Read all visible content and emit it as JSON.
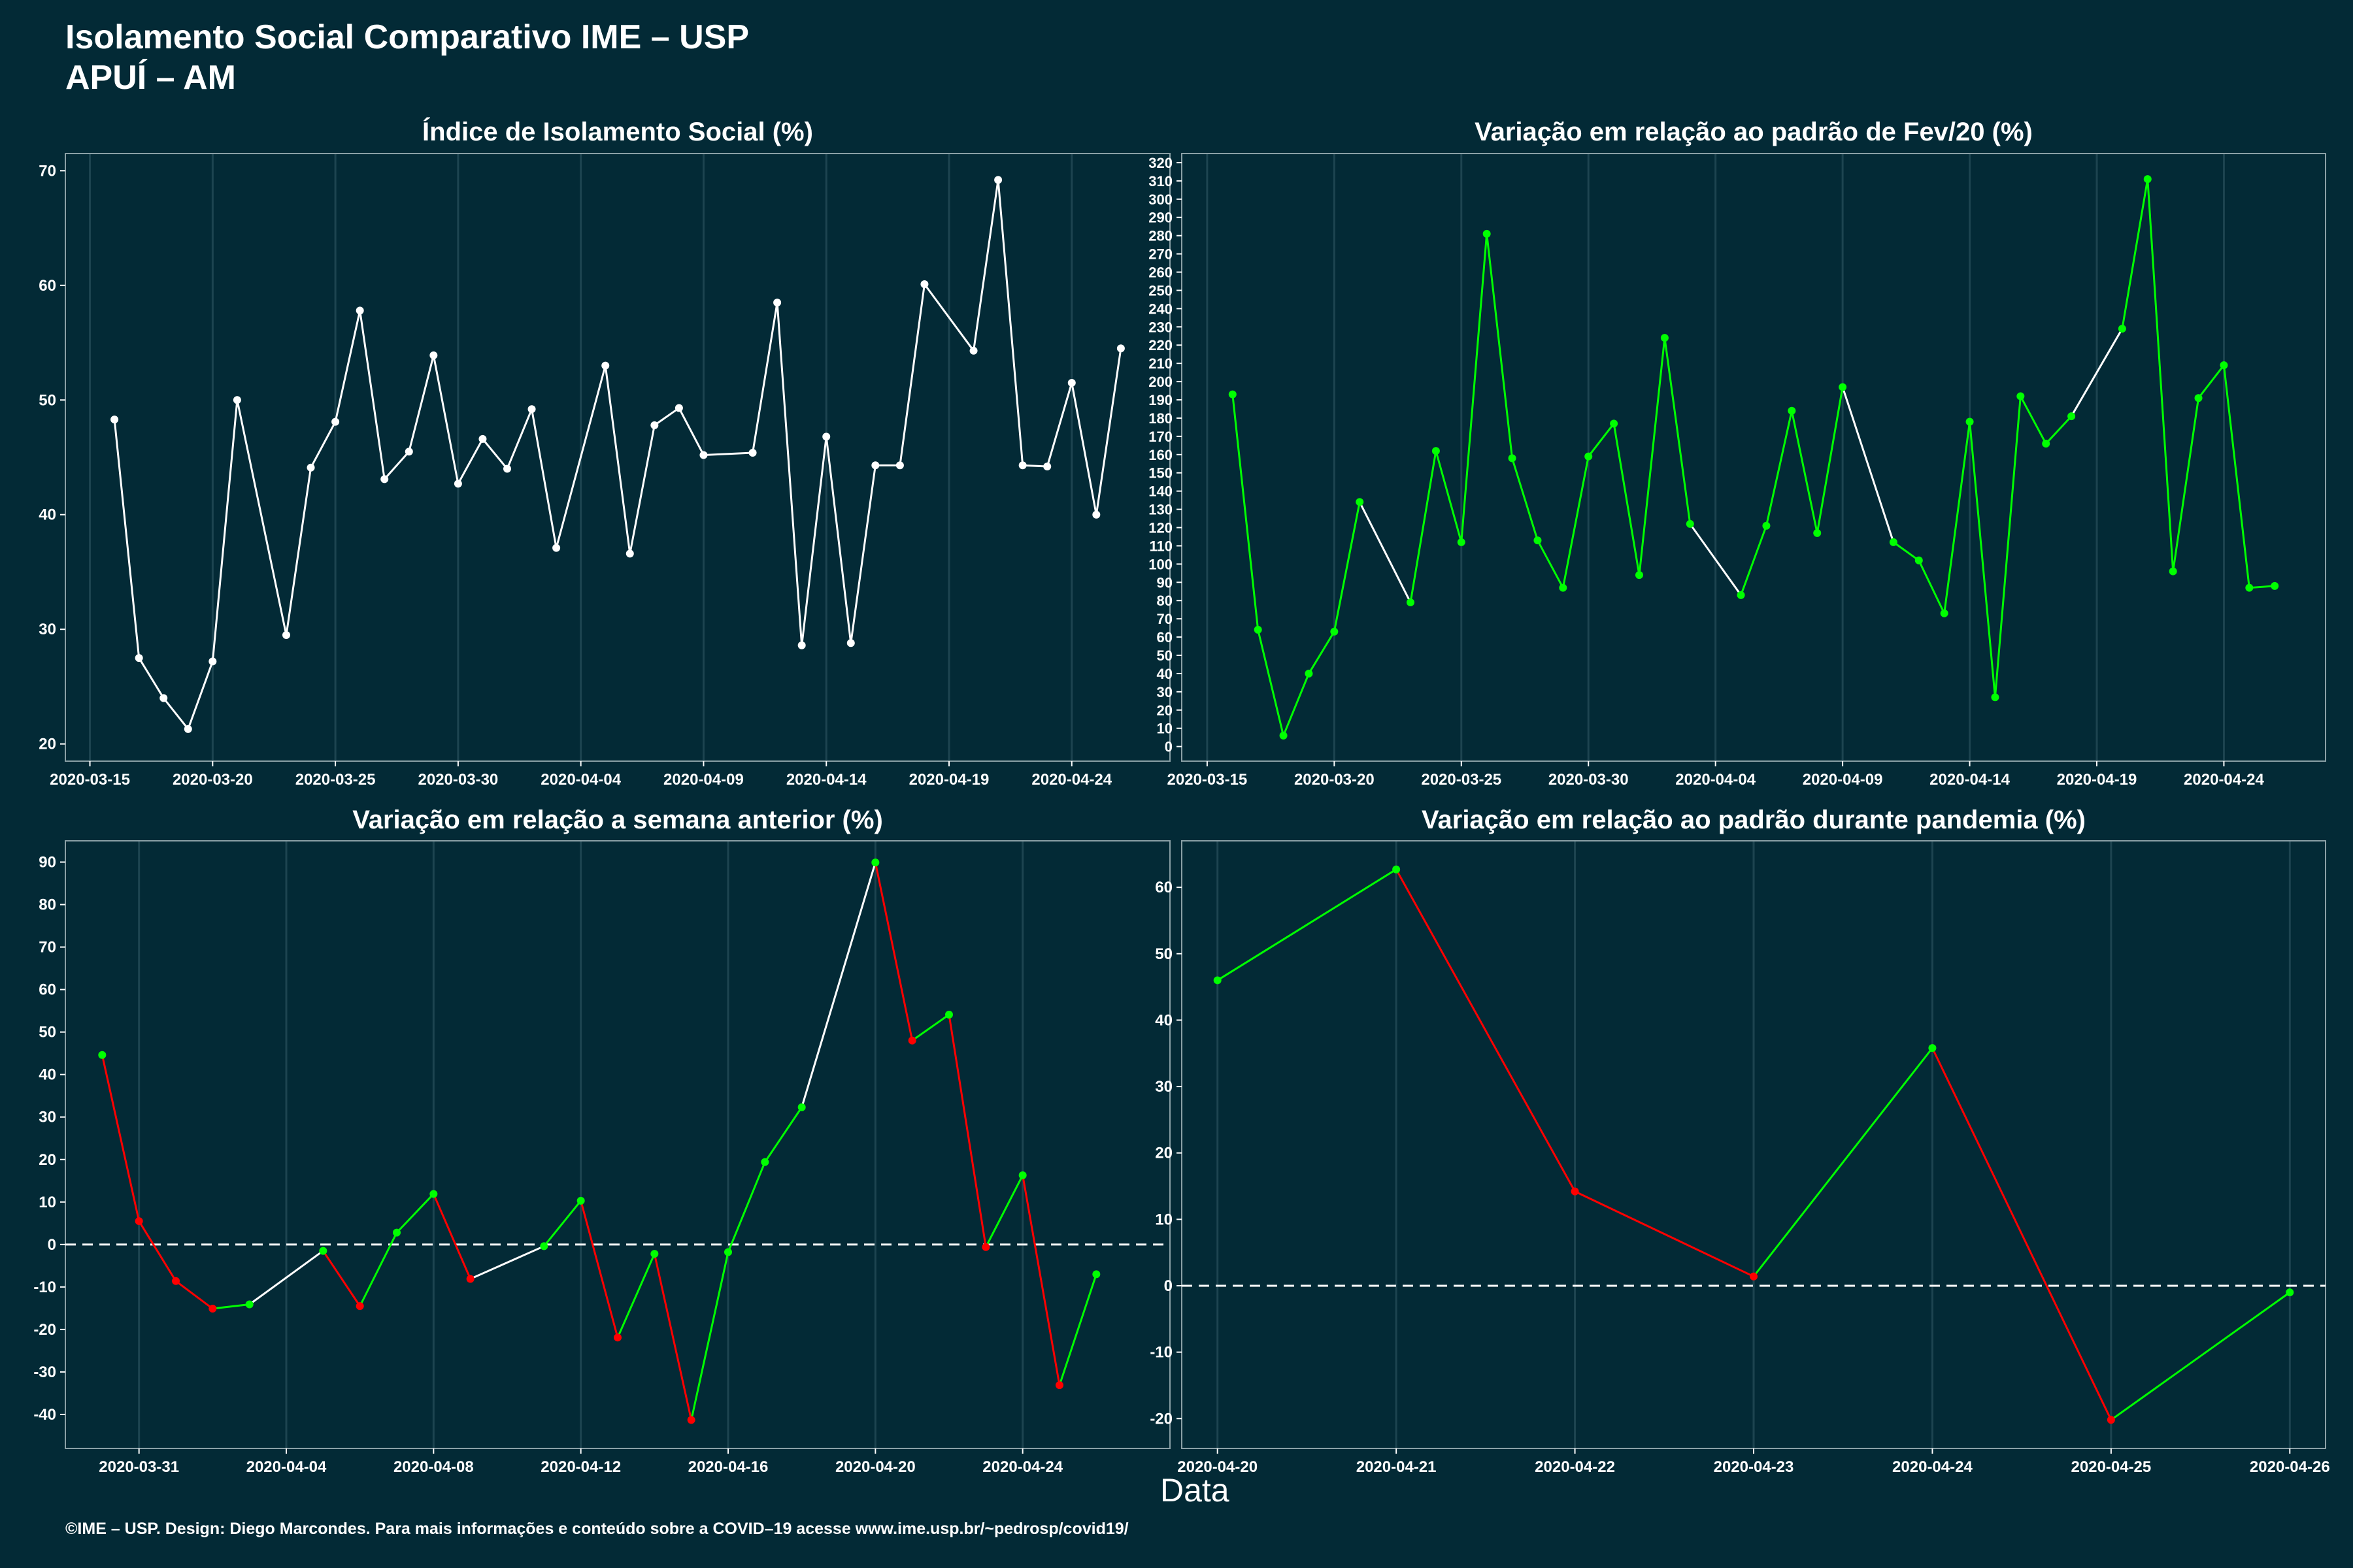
{
  "header": {
    "title_line1": "Isolamento Social Comparativo IME – USP",
    "title_line2": "APUÍ – AM"
  },
  "footer": {
    "text": "©IME – USP. Design: Diego Marcondes. Para mais informações e conteúdo sobre a COVID–19 acesse www.ime.usp.br/~pedrosp/covid19/"
  },
  "xaxis_title": "Data",
  "colors": {
    "background": "#032a36",
    "grid": "#1d4450",
    "up": "#00ff00",
    "down": "#ff0000",
    "neutral": "#ffffff"
  },
  "chart_data": [
    {
      "type": "line",
      "title": "Índice de Isolamento Social (%)",
      "xlabel": "",
      "ylabel": "",
      "ylim": [
        18.5,
        71.5
      ],
      "yticks": [
        20,
        30,
        40,
        50,
        60,
        70
      ],
      "xlim": [
        "2020-03-14",
        "2020-04-28"
      ],
      "xticks": [
        "2020-03-15",
        "2020-03-20",
        "2020-03-25",
        "2020-03-30",
        "2020-04-04",
        "2020-04-09",
        "2020-04-14",
        "2020-04-19",
        "2020-04-24"
      ],
      "color_mode": "single",
      "grid": true,
      "points": [
        [
          "2020-03-16",
          48.3
        ],
        [
          "2020-03-17",
          27.5
        ],
        [
          "2020-03-18",
          24.0
        ],
        [
          "2020-03-19",
          21.3
        ],
        [
          "2020-03-20",
          27.2
        ],
        [
          "2020-03-21",
          50.0
        ],
        [
          "2020-03-23",
          29.5
        ],
        [
          "2020-03-24",
          44.1
        ],
        [
          "2020-03-25",
          48.1
        ],
        [
          "2020-03-26",
          57.8
        ],
        [
          "2020-03-27",
          43.1
        ],
        [
          "2020-03-28",
          45.5
        ],
        [
          "2020-03-29",
          53.9
        ],
        [
          "2020-03-30",
          42.7
        ],
        [
          "2020-03-31",
          46.6
        ],
        [
          "2020-04-01",
          44.0
        ],
        [
          "2020-04-02",
          49.2
        ],
        [
          "2020-04-03",
          37.1
        ],
        [
          "2020-04-05",
          53.0
        ],
        [
          "2020-04-06",
          36.6
        ],
        [
          "2020-04-07",
          47.8
        ],
        [
          "2020-04-08",
          49.3
        ],
        [
          "2020-04-09",
          45.2
        ],
        [
          "2020-04-11",
          45.4
        ],
        [
          "2020-04-12",
          58.5
        ],
        [
          "2020-04-13",
          28.6
        ],
        [
          "2020-04-14",
          46.8
        ],
        [
          "2020-04-15",
          28.8
        ],
        [
          "2020-04-16",
          44.3
        ],
        [
          "2020-04-17",
          44.3
        ],
        [
          "2020-04-18",
          60.1
        ],
        [
          "2020-04-20",
          54.3
        ],
        [
          "2020-04-21",
          69.2
        ],
        [
          "2020-04-22",
          44.3
        ],
        [
          "2020-04-23",
          44.2
        ],
        [
          "2020-04-24",
          51.5
        ],
        [
          "2020-04-25",
          40.0
        ],
        [
          "2020-04-26",
          54.5
        ]
      ]
    },
    {
      "type": "line",
      "title": "Variação em relação ao padrão de Fev/20 (%)",
      "xlabel": "",
      "ylabel": "",
      "ylim": [
        -8,
        325
      ],
      "yticks": [
        0,
        10,
        20,
        30,
        40,
        50,
        60,
        70,
        80,
        90,
        100,
        110,
        120,
        130,
        140,
        150,
        160,
        170,
        180,
        190,
        200,
        210,
        220,
        230,
        240,
        250,
        260,
        270,
        280,
        290,
        300,
        310,
        320
      ],
      "xlim": [
        "2020-03-14",
        "2020-04-28"
      ],
      "xticks": [
        "2020-03-15",
        "2020-03-20",
        "2020-03-25",
        "2020-03-30",
        "2020-04-04",
        "2020-04-09",
        "2020-04-14",
        "2020-04-19",
        "2020-04-24"
      ],
      "color_mode": "gap",
      "grid": true,
      "points": [
        [
          "2020-03-16",
          193
        ],
        [
          "2020-03-17",
          64
        ],
        [
          "2020-03-18",
          6
        ],
        [
          "2020-03-19",
          40
        ],
        [
          "2020-03-20",
          63
        ],
        [
          "2020-03-21",
          134
        ],
        [
          "2020-03-23",
          79
        ],
        [
          "2020-03-24",
          162
        ],
        [
          "2020-03-25",
          112
        ],
        [
          "2020-03-26",
          281
        ],
        [
          "2020-03-27",
          158
        ],
        [
          "2020-03-28",
          113
        ],
        [
          "2020-03-29",
          87
        ],
        [
          "2020-03-30",
          159
        ],
        [
          "2020-03-31",
          177
        ],
        [
          "2020-04-01",
          94
        ],
        [
          "2020-04-02",
          224
        ],
        [
          "2020-04-03",
          122
        ],
        [
          "2020-04-05",
          83
        ],
        [
          "2020-04-06",
          121
        ],
        [
          "2020-04-07",
          184
        ],
        [
          "2020-04-08",
          117
        ],
        [
          "2020-04-09",
          197
        ],
        [
          "2020-04-11",
          112
        ],
        [
          "2020-04-12",
          102
        ],
        [
          "2020-04-13",
          73
        ],
        [
          "2020-04-14",
          178
        ],
        [
          "2020-04-15",
          27
        ],
        [
          "2020-04-16",
          192
        ],
        [
          "2020-04-17",
          166
        ],
        [
          "2020-04-18",
          181
        ],
        [
          "2020-04-20",
          229
        ],
        [
          "2020-04-21",
          311
        ],
        [
          "2020-04-22",
          96
        ],
        [
          "2020-04-23",
          191
        ],
        [
          "2020-04-24",
          209
        ],
        [
          "2020-04-25",
          87
        ],
        [
          "2020-04-26",
          88
        ]
      ]
    },
    {
      "type": "line",
      "title": "Variação em relação a semana anterior (%)",
      "xlabel": "",
      "ylabel": "",
      "ylim": [
        -48,
        95
      ],
      "yticks": [
        -40,
        -30,
        -20,
        -10,
        0,
        10,
        20,
        30,
        40,
        50,
        60,
        70,
        80,
        90
      ],
      "xlim": [
        "2020-03-29",
        "2020-04-28"
      ],
      "xticks": [
        "2020-03-31",
        "2020-04-04",
        "2020-04-08",
        "2020-04-12",
        "2020-04-16",
        "2020-04-20",
        "2020-04-24"
      ],
      "color_mode": "sign",
      "zero_line": true,
      "grid": true,
      "points": [
        [
          "2020-03-30",
          44.6
        ],
        [
          "2020-03-31",
          5.5
        ],
        [
          "2020-04-01",
          -8.6
        ],
        [
          "2020-04-02",
          -15.1
        ],
        [
          "2020-04-03",
          -14.1
        ],
        [
          "2020-04-05",
          -1.5
        ],
        [
          "2020-04-06",
          -14.5
        ],
        [
          "2020-04-07",
          2.8
        ],
        [
          "2020-04-08",
          11.9
        ],
        [
          "2020-04-09",
          -8.1
        ],
        [
          "2020-04-11",
          -0.4
        ],
        [
          "2020-04-12",
          10.3
        ],
        [
          "2020-04-13",
          -21.9
        ],
        [
          "2020-04-14",
          -2.2
        ],
        [
          "2020-04-15",
          -41.3
        ],
        [
          "2020-04-16",
          -1.8
        ],
        [
          "2020-04-17",
          19.4
        ],
        [
          "2020-04-18",
          32.3
        ],
        [
          "2020-04-20",
          89.9
        ],
        [
          "2020-04-21",
          48.0
        ],
        [
          "2020-04-22",
          54.1
        ],
        [
          "2020-04-23",
          -0.6
        ],
        [
          "2020-04-24",
          16.3
        ],
        [
          "2020-04-25",
          -33.1
        ],
        [
          "2020-04-26",
          -7.0
        ]
      ]
    },
    {
      "type": "line",
      "title": "Variação em relação ao padrão durante pandemia (%)",
      "xlabel": "",
      "ylabel": "",
      "ylim": [
        -24.5,
        67
      ],
      "yticks": [
        -20,
        -10,
        0,
        10,
        20,
        30,
        40,
        50,
        60
      ],
      "xlim": [
        "2020-04-19.8",
        "2020-04-26.2"
      ],
      "xticks": [
        "2020-04-20",
        "2020-04-21",
        "2020-04-22",
        "2020-04-23",
        "2020-04-24",
        "2020-04-25",
        "2020-04-26"
      ],
      "color_mode": "sign",
      "zero_line": true,
      "grid": true,
      "points": [
        [
          "2020-04-20",
          46.0
        ],
        [
          "2020-04-21",
          62.7
        ],
        [
          "2020-04-22",
          14.2
        ],
        [
          "2020-04-23",
          1.4
        ],
        [
          "2020-04-24",
          35.8
        ],
        [
          "2020-04-25",
          -20.2
        ],
        [
          "2020-04-26",
          -1.0
        ]
      ]
    }
  ]
}
